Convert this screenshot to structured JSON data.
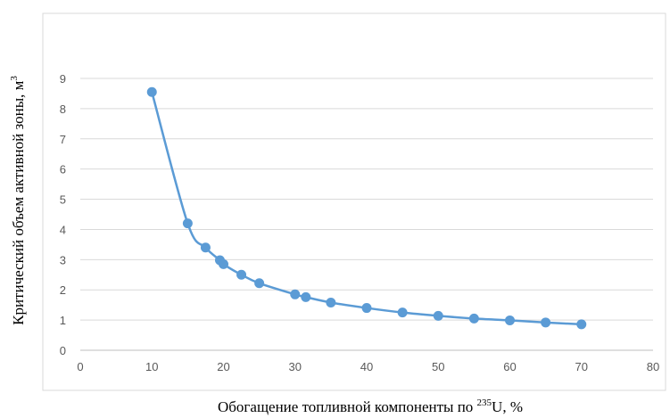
{
  "chart_data": {
    "type": "line",
    "title": "",
    "xlabel_prefix": "Обогащение топливной компоненты по ",
    "xlabel_sup": "235",
    "xlabel_suffix": "U, %",
    "ylabel_prefix": "Критический объем активной зоны, м",
    "ylabel_sup": "3",
    "xlim": [
      0,
      80
    ],
    "ylim": [
      0,
      9
    ],
    "x_ticks": [
      0,
      10,
      20,
      30,
      40,
      50,
      60,
      70,
      80
    ],
    "y_ticks": [
      0,
      1,
      2,
      3,
      4,
      5,
      6,
      7,
      8,
      9
    ],
    "grid": "horizontal",
    "legend": "none",
    "series": [
      {
        "color": "#5B9BD5",
        "x": [
          10,
          15,
          17.5,
          19.5,
          20,
          22.5,
          25,
          30,
          31.5,
          35,
          40,
          45,
          50,
          55,
          60,
          65,
          70
        ],
        "y": [
          8.55,
          4.2,
          3.4,
          2.98,
          2.85,
          2.5,
          2.22,
          1.85,
          1.76,
          1.58,
          1.4,
          1.25,
          1.14,
          1.05,
          0.99,
          0.92,
          0.86
        ]
      }
    ]
  }
}
